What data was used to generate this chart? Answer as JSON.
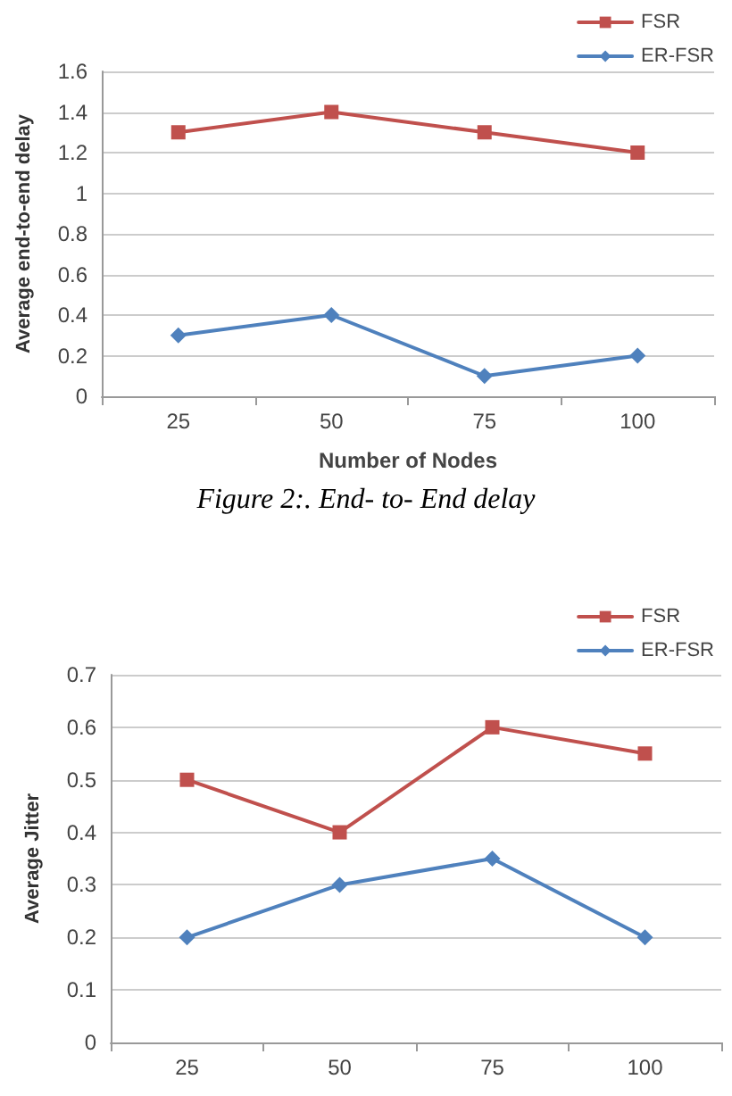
{
  "chart_data": [
    {
      "type": "line",
      "xlabel": "Number of Nodes",
      "ylabel": "Average end-to-end delay",
      "categories": [
        "25",
        "50",
        "75",
        "100"
      ],
      "series": [
        {
          "name": "FSR",
          "color": "#c0504d",
          "marker": "square",
          "values": [
            1.3,
            1.4,
            1.3,
            1.2
          ]
        },
        {
          "name": "ER-FSR",
          "color": "#4f81bd",
          "marker": "diamond",
          "values": [
            0.3,
            0.4,
            0.1,
            0.2
          ]
        }
      ],
      "ylim": [
        0,
        1.6
      ],
      "yticks": [
        0,
        0.2,
        0.4,
        0.6,
        0.8,
        1,
        1.2,
        1.4,
        1.6
      ],
      "grid": "y",
      "legend": "top right",
      "annotations": [
        "Figure 2:. End- to- End delay"
      ]
    },
    {
      "type": "line",
      "ylabel": "Average Jitter",
      "categories": [
        "25",
        "50",
        "75",
        "100"
      ],
      "series": [
        {
          "name": "FSR",
          "color": "#c0504d",
          "marker": "square",
          "values": [
            0.5,
            0.4,
            0.6,
            0.55
          ]
        },
        {
          "name": "ER-FSR",
          "color": "#4f81bd",
          "marker": "diamond",
          "values": [
            0.2,
            0.3,
            0.35,
            0.2
          ]
        }
      ],
      "ylim": [
        0,
        0.7
      ],
      "yticks": [
        0,
        0.1,
        0.2,
        0.3,
        0.4,
        0.5,
        0.6,
        0.7
      ],
      "grid": "y",
      "legend": "top right"
    }
  ]
}
